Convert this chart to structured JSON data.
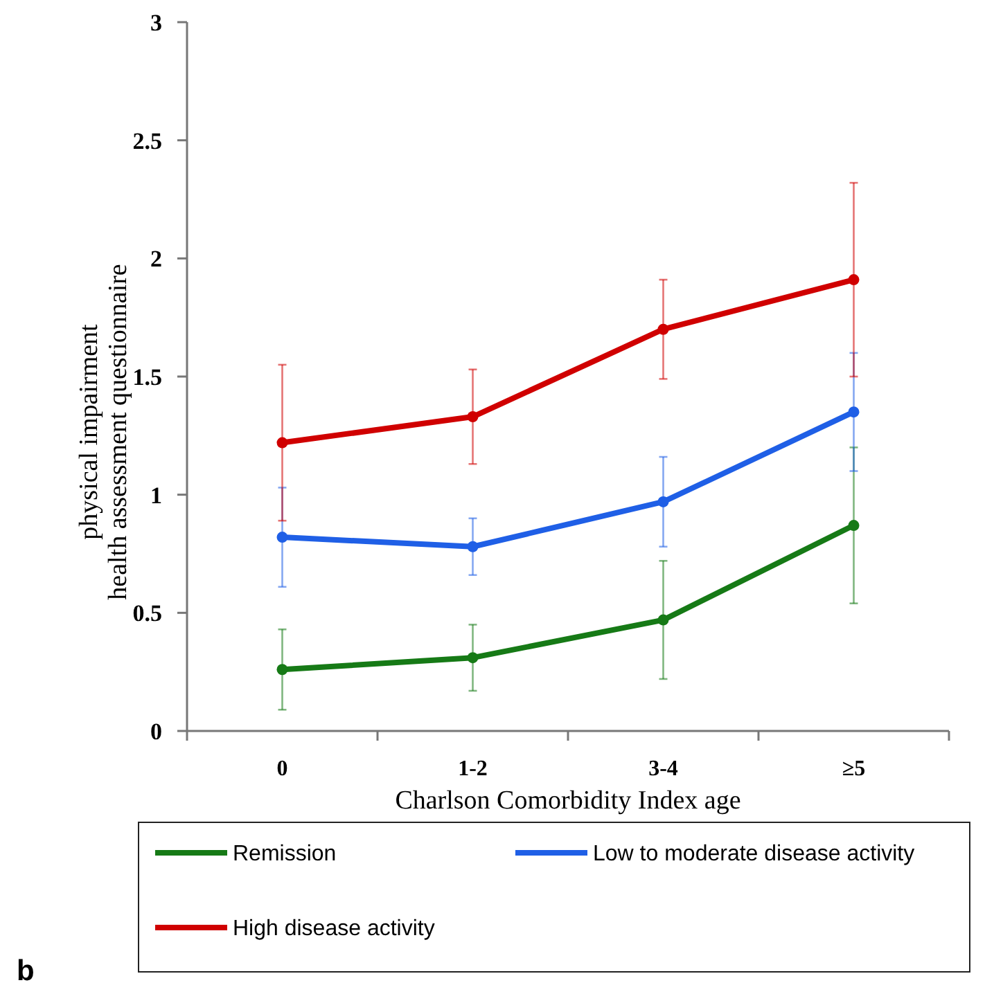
{
  "chart_data": {
    "type": "line",
    "xlabel": "Charlson Comorbidity Index age",
    "ylabel": "physical impairment\nhealth assessment questionnaire",
    "categories": [
      "0",
      "1-2",
      "3-4",
      "≥5"
    ],
    "series": [
      {
        "name": "Remission",
        "color": "#167a16",
        "values": [
          0.26,
          0.31,
          0.47,
          0.87
        ],
        "errors": [
          0.17,
          0.14,
          0.25,
          0.33
        ]
      },
      {
        "name": "Low to moderate disease activity",
        "color": "#1f5fe6",
        "values": [
          0.82,
          0.78,
          0.97,
          1.35
        ],
        "errors": [
          0.21,
          0.12,
          0.19,
          0.25
        ]
      },
      {
        "name": "High disease activity",
        "color": "#d00000",
        "values": [
          1.22,
          1.33,
          1.7,
          1.91
        ],
        "errors": [
          0.33,
          0.2,
          0.21,
          0.41
        ]
      }
    ],
    "ylim": [
      0,
      3
    ],
    "yticks": [
      0,
      0.5,
      1,
      1.5,
      2,
      2.5,
      3
    ],
    "grid": false,
    "legend": "bottom",
    "marker": "circle",
    "line_style": "solid",
    "annotations": [
      "b"
    ]
  }
}
